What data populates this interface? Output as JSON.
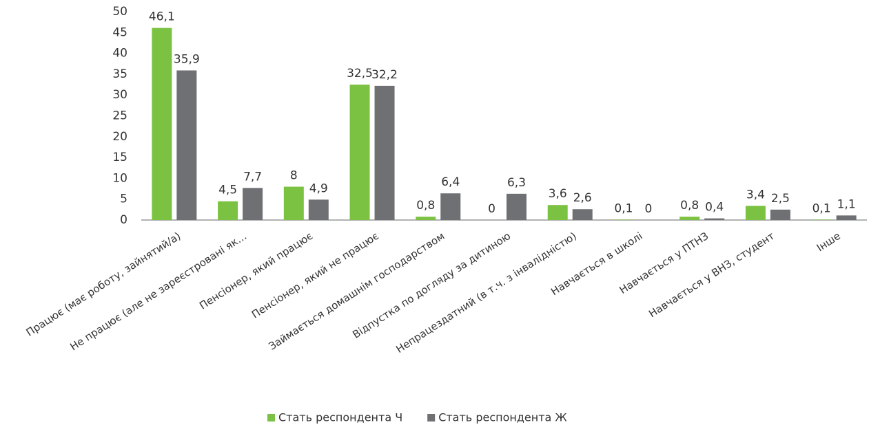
{
  "chart_data": {
    "type": "bar",
    "categories": [
      "Працює (має роботу, зайнятий/а)",
      "Не працює (але не зареєстровані як…",
      "Пенсіонер, який працює",
      "Пенсіонер, який не працює",
      "Займається домашнім господарством",
      "Відпустка по догляду за дитиною",
      "Непрацездатний (в т.ч. з інвалідністю)",
      "Навчається в школі",
      "Навчається у ПТНЗ",
      "Навчається у ВНЗ, студент",
      "Інше"
    ],
    "series": [
      {
        "name": "Стать респондента Ч",
        "color": "#7cc242",
        "values": [
          46.1,
          4.5,
          8,
          32.5,
          0.8,
          0,
          3.6,
          0.1,
          0.8,
          3.4,
          0.1
        ],
        "value_labels": [
          "46,1",
          "4,5",
          "8",
          "32,5",
          "0,8",
          "0",
          "3,6",
          "0,1",
          "0,8",
          "3,4",
          "0,1"
        ]
      },
      {
        "name": "Стать респондента Ж",
        "color": "#6e7074",
        "values": [
          35.9,
          7.7,
          4.9,
          32.2,
          6.4,
          6.3,
          2.6,
          0,
          0.4,
          2.5,
          1.1
        ],
        "value_labels": [
          "35,9",
          "7,7",
          "4,9",
          "32,2",
          "6,4",
          "6,3",
          "2,6",
          "0",
          "0,4",
          "2,5",
          "1,1"
        ]
      }
    ],
    "ylim": [
      0,
      50
    ],
    "yticks": [
      0,
      5,
      10,
      15,
      20,
      25,
      30,
      35,
      40,
      45,
      50
    ],
    "grid": false,
    "legend": "bottom"
  }
}
